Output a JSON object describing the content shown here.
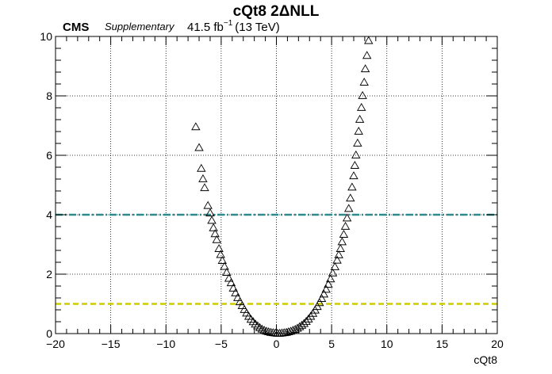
{
  "chart_data": {
    "type": "scatter",
    "title": "cQt8 2ΔNLL",
    "experiment": "CMS",
    "status": "Supplementary",
    "lumi_value": "41.5 fb",
    "lumi_exp": "−1",
    "lumi_energy": "(13 TeV)",
    "xlabel": "cQt8",
    "ylabel": "",
    "xlim": [
      -20,
      20
    ],
    "ylim": [
      0,
      10
    ],
    "xticks": [
      -20,
      -15,
      -10,
      -5,
      0,
      5,
      10,
      15,
      20
    ],
    "xtick_labels": [
      "−20",
      "−15",
      "−10",
      "−5",
      "0",
      "5",
      "10",
      "15",
      "20"
    ],
    "yticks": [
      0,
      2,
      4,
      6,
      8,
      10
    ],
    "ytick_labels": [
      "0",
      "2",
      "4",
      "6",
      "8",
      "10"
    ],
    "grid": true,
    "marker": "open-triangle",
    "reference_lines": [
      {
        "y": 4,
        "color": "#2e8b8b",
        "style": "dash-dot"
      },
      {
        "y": 1,
        "color": "#cccc00",
        "style": "dashed"
      }
    ],
    "series": [
      {
        "points": [
          [
            -7.3,
            6.95
          ],
          [
            -7.0,
            6.25
          ],
          [
            -6.8,
            5.55
          ],
          [
            -6.65,
            5.2
          ],
          [
            -6.5,
            4.9
          ],
          [
            -6.2,
            4.3
          ],
          [
            -6.0,
            4.05
          ],
          [
            -5.85,
            3.8
          ],
          [
            -5.7,
            3.55
          ],
          [
            -5.55,
            3.35
          ],
          [
            -5.4,
            3.15
          ],
          [
            -5.2,
            2.85
          ],
          [
            -5.05,
            2.65
          ],
          [
            -4.9,
            2.45
          ],
          [
            -4.7,
            2.25
          ],
          [
            -4.5,
            2.05
          ],
          [
            -4.3,
            1.85
          ],
          [
            -4.1,
            1.7
          ],
          [
            -3.9,
            1.52
          ],
          [
            -3.7,
            1.36
          ],
          [
            -3.5,
            1.2
          ],
          [
            -3.3,
            1.06
          ],
          [
            -3.1,
            0.93
          ],
          [
            -2.9,
            0.8
          ],
          [
            -2.7,
            0.68
          ],
          [
            -2.5,
            0.57
          ],
          [
            -2.3,
            0.47
          ],
          [
            -2.1,
            0.39
          ],
          [
            -1.9,
            0.31
          ],
          [
            -1.7,
            0.25
          ],
          [
            -1.5,
            0.19
          ],
          [
            -1.3,
            0.14
          ],
          [
            -1.1,
            0.1
          ],
          [
            -0.9,
            0.07
          ],
          [
            -0.7,
            0.05
          ],
          [
            -0.5,
            0.03
          ],
          [
            -0.3,
            0.02
          ],
          [
            -0.1,
            0.01
          ],
          [
            0.1,
            0.0
          ],
          [
            0.3,
            0.0
          ],
          [
            0.5,
            0.01
          ],
          [
            0.7,
            0.02
          ],
          [
            0.9,
            0.03
          ],
          [
            1.1,
            0.05
          ],
          [
            1.3,
            0.07
          ],
          [
            1.5,
            0.1
          ],
          [
            1.7,
            0.13
          ],
          [
            1.9,
            0.17
          ],
          [
            2.1,
            0.22
          ],
          [
            2.3,
            0.27
          ],
          [
            2.5,
            0.33
          ],
          [
            2.7,
            0.4
          ],
          [
            2.9,
            0.48
          ],
          [
            3.1,
            0.57
          ],
          [
            3.3,
            0.67
          ],
          [
            3.5,
            0.78
          ],
          [
            3.7,
            0.9
          ],
          [
            3.9,
            1.03
          ],
          [
            4.1,
            1.17
          ],
          [
            4.3,
            1.32
          ],
          [
            4.5,
            1.48
          ],
          [
            4.7,
            1.65
          ],
          [
            4.9,
            1.83
          ],
          [
            5.1,
            2.03
          ],
          [
            5.3,
            2.24
          ],
          [
            5.5,
            2.46
          ],
          [
            5.65,
            2.64
          ],
          [
            5.8,
            2.85
          ],
          [
            5.95,
            3.08
          ],
          [
            6.1,
            3.33
          ],
          [
            6.25,
            3.6
          ],
          [
            6.4,
            3.88
          ],
          [
            6.55,
            4.2
          ],
          [
            6.7,
            4.55
          ],
          [
            6.85,
            4.92
          ],
          [
            7.0,
            5.3
          ],
          [
            7.1,
            5.65
          ],
          [
            7.2,
            6.0
          ],
          [
            7.35,
            6.4
          ],
          [
            7.45,
            6.8
          ],
          [
            7.55,
            7.2
          ],
          [
            7.7,
            7.6
          ],
          [
            7.8,
            8.0
          ],
          [
            7.95,
            8.45
          ],
          [
            8.05,
            8.9
          ],
          [
            8.2,
            9.35
          ],
          [
            8.35,
            9.85
          ]
        ]
      }
    ]
  }
}
